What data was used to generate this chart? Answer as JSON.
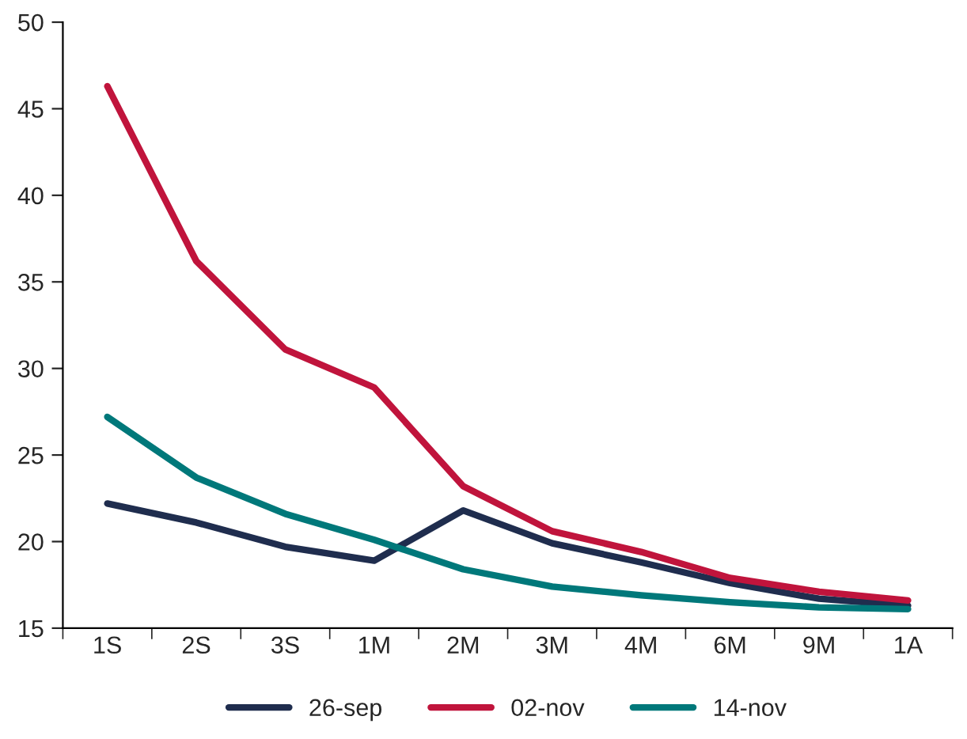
{
  "chart_data": {
    "type": "line",
    "categories": [
      "1S",
      "2S",
      "3S",
      "1M",
      "2M",
      "3M",
      "4M",
      "6M",
      "9M",
      "1A"
    ],
    "series": [
      {
        "name": "26-sep",
        "color": "#1f2d4e",
        "values": [
          22.2,
          21.1,
          19.7,
          18.9,
          21.8,
          19.9,
          18.8,
          17.6,
          16.7,
          16.3
        ]
      },
      {
        "name": "02-nov",
        "color": "#c0143c",
        "values": [
          46.3,
          36.2,
          31.1,
          28.9,
          23.2,
          20.6,
          19.4,
          17.9,
          17.1,
          16.6
        ]
      },
      {
        "name": "14-nov",
        "color": "#00787a",
        "values": [
          27.2,
          23.7,
          21.6,
          20.1,
          18.4,
          17.4,
          16.9,
          16.5,
          16.2,
          16.1
        ]
      }
    ],
    "ylim": [
      15,
      50
    ],
    "yticks": [
      15,
      20,
      25,
      30,
      35,
      40,
      45,
      50
    ],
    "grid": false,
    "legend": "bottom",
    "marker": "none",
    "line_style": "solid"
  }
}
